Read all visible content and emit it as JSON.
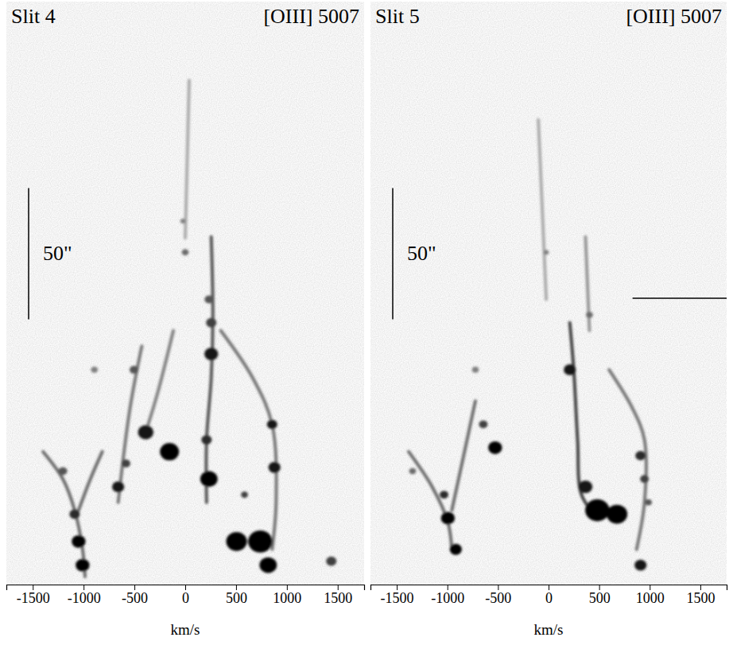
{
  "chart_data": [
    {
      "type": "position_velocity",
      "title": "Slit 4",
      "subtitle": "[OIII] 5007",
      "xlabel": "km/s",
      "xlim": [
        -1760,
        1760
      ],
      "xticks": [
        -1500,
        -1000,
        -500,
        0,
        500,
        1000,
        1500
      ],
      "ylim": [
        0,
        222
      ],
      "tick_labels": "x",
      "color": "#000000",
      "scale_bar": {
        "length": 50,
        "label": "50\""
      },
      "knots": [
        {
          "x": -1049,
          "y": 16.4,
          "size": 2.4,
          "brightness": 1.0
        },
        {
          "x": -1010,
          "y": 7.4,
          "size": 2.4,
          "brightness": 1.0
        },
        {
          "x": -1088,
          "y": 26.8,
          "size": 1.8,
          "brightness": 0.8
        },
        {
          "x": -1204,
          "y": 43.2,
          "size": 1.5,
          "brightness": 0.6
        },
        {
          "x": -660,
          "y": 37.2,
          "size": 2.1,
          "brightness": 0.9
        },
        {
          "x": -583,
          "y": 46.1,
          "size": 1.5,
          "brightness": 0.7
        },
        {
          "x": -389,
          "y": 58.0,
          "size": 2.7,
          "brightness": 0.9
        },
        {
          "x": -155,
          "y": 50.6,
          "size": 3.3,
          "brightness": 1.0
        },
        {
          "x": -505,
          "y": 81.8,
          "size": 1.5,
          "brightness": 0.6
        },
        {
          "x": 256,
          "y": 87.8,
          "size": 2.4,
          "brightness": 0.9
        },
        {
          "x": 256,
          "y": 99.7,
          "size": 1.8,
          "brightness": 0.7
        },
        {
          "x": 233,
          "y": 108.6,
          "size": 1.5,
          "brightness": 0.6
        },
        {
          "x": 233,
          "y": 40.2,
          "size": 3.0,
          "brightness": 1.0
        },
        {
          "x": 210,
          "y": 55.1,
          "size": 1.8,
          "brightness": 0.8
        },
        {
          "x": 855,
          "y": 61.0,
          "size": 1.8,
          "brightness": 0.9
        },
        {
          "x": 878,
          "y": 44.6,
          "size": 2.1,
          "brightness": 0.9
        },
        {
          "x": 505,
          "y": 16.4,
          "size": 3.6,
          "brightness": 1.0
        },
        {
          "x": 738,
          "y": 16.4,
          "size": 4.2,
          "brightness": 1.0
        },
        {
          "x": 816,
          "y": 7.4,
          "size": 3.0,
          "brightness": 1.0
        },
        {
          "x": 1437,
          "y": 8.9,
          "size": 1.8,
          "brightness": 0.7
        },
        {
          "x": 0,
          "y": 126.5,
          "size": 1.2,
          "brightness": 0.5
        },
        {
          "x": -23,
          "y": 138.4,
          "size": 0.9,
          "brightness": 0.4
        },
        {
          "x": -894,
          "y": 81.8,
          "size": 1.2,
          "brightness": 0.4
        },
        {
          "x": 583,
          "y": 34.2,
          "size": 1.2,
          "brightness": 0.7
        }
      ],
      "filaments": [
        {
          "x": [
            -1399,
            -1204,
            -1088,
            -1010,
            -986
          ],
          "y": [
            50.6,
            40.2,
            28.3,
            13.4,
            3.0
          ],
          "brightness": 0.5
        },
        {
          "x": [
            -816,
            -933,
            -1049
          ],
          "y": [
            50.6,
            40.2,
            28.3
          ],
          "brightness": 0.5
        },
        {
          "x": [
            -660,
            -544,
            -427
          ],
          "y": [
            31.3,
            67.0,
            90.8
          ],
          "brightness": 0.45
        },
        {
          "x": [
            256,
            272,
            256,
            210,
            210
          ],
          "y": [
            132.4,
            102.7,
            78.9,
            55.1,
            31.3
          ],
          "brightness": 0.6
        },
        {
          "x": [
            350,
            661,
            855,
            894,
            855
          ],
          "y": [
            96.7,
            78.9,
            61.0,
            31.3,
            13.4
          ],
          "brightness": 0.45
        },
        {
          "x": [
            -117,
            -272,
            -389
          ],
          "y": [
            96.7,
            72.9,
            58.0
          ],
          "brightness": 0.4
        },
        {
          "x": [
            39,
            0
          ],
          "y": [
            192,
            132
          ],
          "brightness": 0.2
        }
      ]
    },
    {
      "type": "position_velocity",
      "title": "Slit 5",
      "subtitle": "[OIII] 5007",
      "xlabel": "km/s",
      "xlim": [
        -1760,
        1760
      ],
      "xticks": [
        -1500,
        -1000,
        -500,
        0,
        500,
        1000,
        1500
      ],
      "ylim": [
        0,
        222
      ],
      "tick_labels": "x",
      "color": "#000000",
      "scale_bar": {
        "length": 50,
        "label": "50\""
      },
      "marker": {
        "y": 109,
        "x_start": 830
      },
      "knots": [
        {
          "x": -995,
          "y": 25.3,
          "size": 2.4,
          "brightness": 1.0
        },
        {
          "x": -917,
          "y": 13.4,
          "size": 2.1,
          "brightness": 1.0
        },
        {
          "x": -1033,
          "y": 34.2,
          "size": 1.5,
          "brightness": 0.8
        },
        {
          "x": -528,
          "y": 52.1,
          "size": 2.4,
          "brightness": 1.0
        },
        {
          "x": -645,
          "y": 61.0,
          "size": 1.5,
          "brightness": 0.7
        },
        {
          "x": 210,
          "y": 81.8,
          "size": 2.1,
          "brightness": 0.9
        },
        {
          "x": 482,
          "y": 28.3,
          "size": 4.2,
          "brightness": 1.0
        },
        {
          "x": 676,
          "y": 26.8,
          "size": 3.6,
          "brightness": 1.0
        },
        {
          "x": 365,
          "y": 37.2,
          "size": 2.4,
          "brightness": 0.9
        },
        {
          "x": 909,
          "y": 49.1,
          "size": 1.8,
          "brightness": 0.8
        },
        {
          "x": 948,
          "y": 40.2,
          "size": 1.5,
          "brightness": 0.7
        },
        {
          "x": 987,
          "y": 31.3,
          "size": 1.2,
          "brightness": 0.6
        },
        {
          "x": 909,
          "y": 7.4,
          "size": 2.1,
          "brightness": 0.9
        },
        {
          "x": 404,
          "y": 102.7,
          "size": 1.2,
          "brightness": 0.5
        },
        {
          "x": -23,
          "y": 126.5,
          "size": 0.9,
          "brightness": 0.4
        },
        {
          "x": -1344,
          "y": 43.2,
          "size": 1.2,
          "brightness": 0.5
        },
        {
          "x": -723,
          "y": 81.8,
          "size": 1.2,
          "brightness": 0.4
        }
      ],
      "filaments": [
        {
          "x": [
            -1383,
            -1150,
            -995,
            -956
          ],
          "y": [
            50.6,
            37.2,
            23.8,
            13.4
          ],
          "brightness": 0.5
        },
        {
          "x": [
            -723,
            -839,
            -956
          ],
          "y": [
            69.9,
            49.1,
            28.3
          ],
          "brightness": 0.5
        },
        {
          "x": [
            210,
            249,
            287,
            326,
            482
          ],
          "y": [
            99.7,
            81.8,
            55.1,
            34.2,
            25.3
          ],
          "brightness": 0.7
        },
        {
          "x": [
            598,
            831,
            948,
            948,
            870
          ],
          "y": [
            81.8,
            67.0,
            55.1,
            31.3,
            13.4
          ],
          "brightness": 0.45
        },
        {
          "x": [
            -101,
            -23
          ],
          "y": [
            177,
            108.6
          ],
          "brightness": 0.2
        },
        {
          "x": [
            365,
            404
          ],
          "y": [
            132.4,
            96.7
          ],
          "brightness": 0.3
        }
      ]
    }
  ]
}
